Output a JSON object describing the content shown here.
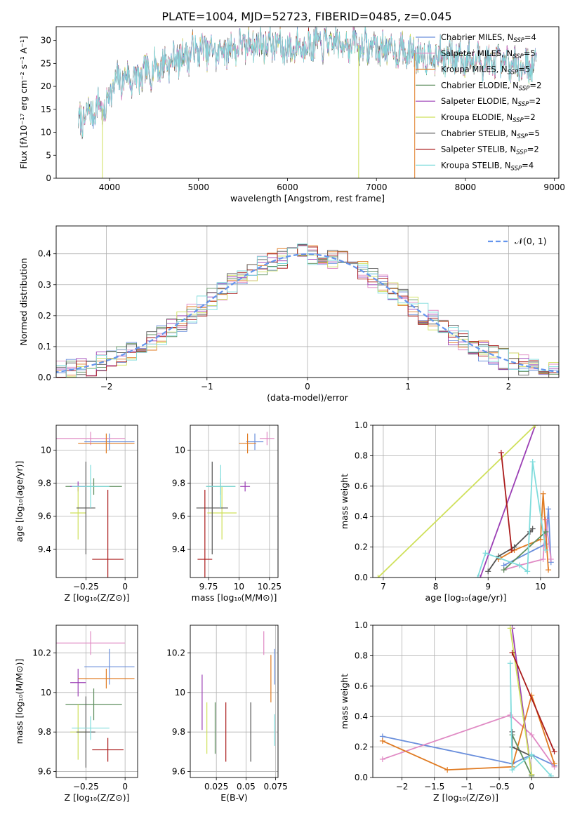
{
  "figure": {
    "title": "PLATE=1004, MJD=52723, FIBERID=0485, z=0.045"
  },
  "colors": {
    "Chabrier MILES": "#6a8fdc",
    "Salpeter MILES": "#e08ac4",
    "Kroupa MILES": "#e07b22",
    "Chabrier ELODIE": "#5e8e5e",
    "Salpeter ELODIE": "#9b3fb5",
    "Kroupa ELODIE": "#cfe05a",
    "Chabrier STELIB": "#555555",
    "Salpeter STELIB": "#aa1a1a",
    "Kroupa STELIB": "#7fdcdc"
  },
  "chart_data": [
    {
      "id": "spectrum",
      "type": "line",
      "xlabel": "wavelength [Angstrom, rest frame]",
      "ylabel": "Flux [fλ10⁻¹⁷ erg cm⁻² s⁻¹ A⁻¹]",
      "xlim": [
        3400,
        9050
      ],
      "ylim": [
        0,
        33
      ],
      "xticks": [
        4000,
        5000,
        6000,
        7000,
        8000,
        9000
      ],
      "yticks": [
        0,
        5,
        10,
        15,
        20,
        25,
        30
      ],
      "legend_position": "right",
      "legend": [
        {
          "model": "Chabrier MILES",
          "nssp": "4"
        },
        {
          "model": "Salpeter MILES",
          "nssp": "5"
        },
        {
          "model": "Kroupa MILES",
          "nssp": "5"
        },
        {
          "model": "Chabrier ELODIE",
          "nssp": "2"
        },
        {
          "model": "Salpeter ELODIE",
          "nssp": "2"
        },
        {
          "model": "Kroupa ELODIE",
          "nssp": "2"
        },
        {
          "model": "Chabrier STELIB",
          "nssp": "5"
        },
        {
          "model": "Salpeter STELIB",
          "nssp": "2"
        },
        {
          "model": "Kroupa STELIB",
          "nssp": "4"
        }
      ],
      "continuum": {
        "x": [
          3650,
          3700,
          3800,
          3900,
          3950,
          4000,
          4100,
          4200,
          4300,
          4500,
          4700,
          5000,
          5200,
          5500,
          5800,
          6000,
          6200,
          6500,
          6800,
          7000,
          7200,
          7500,
          7800,
          8000,
          8200,
          8400,
          8600,
          8800
        ],
        "y": [
          12,
          13,
          14.5,
          16,
          14,
          19,
          21,
          22,
          21.5,
          24,
          25.5,
          28,
          27.5,
          29,
          29.5,
          28,
          29,
          29.5,
          29,
          28.5,
          28,
          27,
          26.5,
          26,
          25.5,
          25,
          24.5,
          24.5
        ]
      },
      "lines": [
        {
          "model": "Kroupa ELODIE",
          "x": 3920,
          "y": 0
        },
        {
          "model": "Kroupa ELODIE",
          "x": 6800,
          "y": 0
        },
        {
          "model": "Kroupa MILES",
          "x": 7430,
          "y": 0
        }
      ]
    },
    {
      "id": "residuals",
      "type": "step",
      "xlabel": "(data-model)/error",
      "ylabel": "Normed distribution",
      "xlim": [
        -2.5,
        2.5
      ],
      "ylim": [
        0,
        0.49
      ],
      "xticks": [
        -2,
        -1,
        0,
        1,
        2
      ],
      "yticks": [
        0.0,
        0.1,
        0.2,
        0.3,
        0.4
      ],
      "grid": true,
      "legend_position": "top-right",
      "legend_label": "𝒩(0, 1)",
      "bin_width": 0.1
    },
    {
      "id": "age_Z",
      "type": "errorbar",
      "xlabel": "Z [log₁₀(Z/Z⊙)]",
      "ylabel": "age  [log₁₀(age/yr)]",
      "xlim": [
        -0.44,
        0.08
      ],
      "ylim": [
        9.23,
        10.15
      ],
      "xticks": [
        -0.25,
        0.0
      ],
      "yticks": [
        9.4,
        9.6,
        9.8,
        10.0
      ],
      "grid": true,
      "points": [
        {
          "model": "Chabrier MILES",
          "x": -0.1,
          "y": 10.05,
          "xerr": 0.16,
          "yerr": 0.05
        },
        {
          "model": "Salpeter MILES",
          "x": -0.22,
          "y": 10.07,
          "xerr": 0.22,
          "yerr": 0.04
        },
        {
          "model": "Kroupa MILES",
          "x": -0.12,
          "y": 10.04,
          "xerr": 0.18,
          "yerr": 0.06
        },
        {
          "model": "Chabrier ELODIE",
          "x": -0.2,
          "y": 9.78,
          "xerr": 0.18,
          "yerr": 0.05
        },
        {
          "model": "Salpeter ELODIE",
          "x": -0.3,
          "y": 9.78,
          "xerr": 0.05,
          "yerr": 0.03
        },
        {
          "model": "Kroupa ELODIE",
          "x": -0.3,
          "y": 9.62,
          "xerr": 0.05,
          "yerr": 0.16
        },
        {
          "model": "Chabrier STELIB",
          "x": -0.25,
          "y": 9.65,
          "xerr": 0.06,
          "yerr": 0.28
        },
        {
          "model": "Salpeter STELIB",
          "x": -0.11,
          "y": 9.34,
          "xerr": 0.1,
          "yerr": 0.42
        },
        {
          "model": "Kroupa STELIB",
          "x": -0.22,
          "y": 9.78,
          "xerr": 0.12,
          "yerr": 0.13
        }
      ]
    },
    {
      "id": "age_mass",
      "type": "errorbar",
      "xlabel": "mass [log₁₀(M/M⊙)]",
      "ylabel": "",
      "xlim": [
        9.6,
        10.32
      ],
      "ylim": [
        9.23,
        10.15
      ],
      "xticks": [
        9.75,
        10.0,
        10.25
      ],
      "yticks": [
        9.4,
        9.6,
        9.8,
        10.0
      ],
      "grid": true,
      "points": [
        {
          "model": "Chabrier MILES",
          "x": 10.13,
          "y": 10.05,
          "xerr": 0.07,
          "yerr": 0.05
        },
        {
          "model": "Salpeter MILES",
          "x": 10.23,
          "y": 10.07,
          "xerr": 0.06,
          "yerr": 0.04
        },
        {
          "model": "Kroupa MILES",
          "x": 10.07,
          "y": 10.04,
          "xerr": 0.07,
          "yerr": 0.06
        },
        {
          "model": "Chabrier ELODIE",
          "x": 9.85,
          "y": 9.78,
          "xerr": 0.12,
          "yerr": 0.05
        },
        {
          "model": "Salpeter ELODIE",
          "x": 10.05,
          "y": 9.78,
          "xerr": 0.04,
          "yerr": 0.03
        },
        {
          "model": "Kroupa ELODIE",
          "x": 9.86,
          "y": 9.62,
          "xerr": 0.12,
          "yerr": 0.16
        },
        {
          "model": "Chabrier STELIB",
          "x": 9.78,
          "y": 9.65,
          "xerr": 0.13,
          "yerr": 0.28
        },
        {
          "model": "Salpeter STELIB",
          "x": 9.72,
          "y": 9.34,
          "xerr": 0.06,
          "yerr": 0.42
        },
        {
          "model": "Kroupa STELIB",
          "x": 9.85,
          "y": 9.78,
          "xerr": 0.12,
          "yerr": 0.13
        }
      ]
    },
    {
      "id": "weight_age",
      "type": "line",
      "xlabel": "age  [log₁₀(age/yr)]",
      "ylabel": "mass weight",
      "xlim": [
        6.8,
        10.35
      ],
      "ylim": [
        0,
        1.0
      ],
      "xticks": [
        7,
        8,
        9,
        10
      ],
      "yticks": [
        0.0,
        0.2,
        0.4,
        0.6,
        0.8,
        1.0
      ],
      "grid": true,
      "series": [
        {
          "model": "Chabrier MILES",
          "x": [
            9.3,
            10.1,
            10.15,
            10.2
          ],
          "y": [
            0.08,
            0.22,
            0.45,
            0.1
          ]
        },
        {
          "model": "Salpeter MILES",
          "x": [
            9.3,
            9.6,
            10.05,
            10.1,
            10.2
          ],
          "y": [
            0.05,
            0.08,
            0.12,
            0.38,
            0.12
          ]
        },
        {
          "model": "Kroupa MILES",
          "x": [
            9.2,
            9.5,
            10.0,
            10.05,
            10.15
          ],
          "y": [
            0.12,
            0.18,
            0.25,
            0.55,
            0.05
          ]
        },
        {
          "model": "Chabrier ELODIE",
          "x": [
            9.3,
            10.1
          ],
          "y": [
            0.05,
            0.3
          ]
        },
        {
          "model": "Salpeter ELODIE",
          "x": [
            8.85,
            9.9
          ],
          "y": [
            0.0,
            1.0
          ]
        },
        {
          "model": "Kroupa ELODIE",
          "x": [
            6.9,
            9.9
          ],
          "y": [
            0.0,
            1.0
          ]
        },
        {
          "model": "Chabrier STELIB",
          "x": [
            9.0,
            9.2,
            9.5,
            9.8,
            9.85
          ],
          "y": [
            0.04,
            0.14,
            0.2,
            0.3,
            0.32
          ]
        },
        {
          "model": "Salpeter STELIB",
          "x": [
            9.25,
            9.45
          ],
          "y": [
            0.82,
            0.18
          ]
        },
        {
          "model": "Kroupa STELIB",
          "x": [
            8.8,
            8.95,
            9.6,
            9.75,
            9.85,
            10.1
          ],
          "y": [
            0.0,
            0.16,
            0.08,
            0.04,
            0.76,
            0.18
          ]
        }
      ]
    },
    {
      "id": "mass_Z",
      "type": "errorbar",
      "xlabel": "Z [log₁₀(Z/Z⊙)]",
      "ylabel": "mass [log₁₀(M/M⊙)]",
      "xlim": [
        -0.44,
        0.08
      ],
      "ylim": [
        9.57,
        10.34
      ],
      "xticks": [
        -0.25,
        0.0
      ],
      "yticks": [
        9.6,
        9.8,
        10.0,
        10.2
      ],
      "grid": true,
      "points": [
        {
          "model": "Chabrier MILES",
          "x": -0.1,
          "y": 10.13,
          "xerr": 0.16,
          "yerr": 0.09
        },
        {
          "model": "Salpeter MILES",
          "x": -0.22,
          "y": 10.25,
          "xerr": 0.22,
          "yerr": 0.06
        },
        {
          "model": "Kroupa MILES",
          "x": -0.12,
          "y": 10.07,
          "xerr": 0.18,
          "yerr": 0.05
        },
        {
          "model": "Chabrier ELODIE",
          "x": -0.2,
          "y": 9.94,
          "xerr": 0.18,
          "yerr": 0.08
        },
        {
          "model": "Salpeter ELODIE",
          "x": -0.3,
          "y": 10.05,
          "xerr": 0.05,
          "yerr": 0.07
        },
        {
          "model": "Kroupa ELODIE",
          "x": -0.3,
          "y": 9.8,
          "xerr": 0.05,
          "yerr": 0.14
        },
        {
          "model": "Chabrier STELIB",
          "x": -0.25,
          "y": 9.8,
          "xerr": 0.06,
          "yerr": 0.18
        },
        {
          "model": "Salpeter STELIB",
          "x": -0.11,
          "y": 9.71,
          "xerr": 0.1,
          "yerr": 0.06
        },
        {
          "model": "Kroupa STELIB",
          "x": -0.22,
          "y": 9.82,
          "xerr": 0.12,
          "yerr": 0.06
        }
      ]
    },
    {
      "id": "mass_ebv",
      "type": "errorbar",
      "xlabel": "E(B-V)",
      "ylabel": "",
      "xlim": [
        0.003,
        0.077
      ],
      "ylim": [
        9.57,
        10.34
      ],
      "xticks": [
        0.025,
        0.05,
        0.075
      ],
      "yticks": [
        9.6,
        9.8,
        10.0,
        10.2
      ],
      "grid": true,
      "points": [
        {
          "model": "Chabrier MILES",
          "x": 0.074,
          "y": 10.13,
          "yerr": 0.09
        },
        {
          "model": "Salpeter MILES",
          "x": 0.065,
          "y": 10.25,
          "yerr": 0.06
        },
        {
          "model": "Kroupa MILES",
          "x": 0.071,
          "y": 10.07,
          "yerr": 0.12
        },
        {
          "model": "Chabrier ELODIE",
          "x": 0.024,
          "y": 9.82,
          "yerr": 0.13
        },
        {
          "model": "Salpeter ELODIE",
          "x": 0.013,
          "y": 9.95,
          "yerr": 0.14
        },
        {
          "model": "Kroupa ELODIE",
          "x": 0.017,
          "y": 9.82,
          "yerr": 0.13
        },
        {
          "model": "Chabrier STELIB",
          "x": 0.054,
          "y": 9.8,
          "yerr": 0.15
        },
        {
          "model": "Salpeter STELIB",
          "x": 0.033,
          "y": 9.8,
          "yerr": 0.15
        },
        {
          "model": "Kroupa STELIB",
          "x": 0.074,
          "y": 9.81,
          "yerr": 0.08
        }
      ]
    },
    {
      "id": "weight_Z",
      "type": "line",
      "xlabel": "Z [log₁₀(Z/Z⊙)]",
      "ylabel": "mass weight",
      "xlim": [
        -2.45,
        0.42
      ],
      "ylim": [
        0,
        1.0
      ],
      "xticks": [
        -2.0,
        -1.5,
        -1.0,
        -0.5,
        0.0
      ],
      "yticks": [
        0.0,
        0.2,
        0.4,
        0.6,
        0.8,
        1.0
      ],
      "grid": true,
      "series": [
        {
          "model": "Chabrier MILES",
          "x": [
            -2.3,
            -0.3,
            0.0,
            0.35
          ],
          "y": [
            0.27,
            0.09,
            0.15,
            0.08
          ]
        },
        {
          "model": "Salpeter MILES",
          "x": [
            -2.3,
            -0.33,
            0.0,
            0.35
          ],
          "y": [
            0.12,
            0.41,
            0.28,
            0.07
          ]
        },
        {
          "model": "Kroupa MILES",
          "x": [
            -2.3,
            -1.3,
            -0.3,
            0.0,
            0.35
          ],
          "y": [
            0.24,
            0.05,
            0.07,
            0.54,
            0.09
          ]
        },
        {
          "model": "Chabrier ELODIE",
          "x": [
            -0.3,
            0.0
          ],
          "y": [
            0.28,
            0.01
          ]
        },
        {
          "model": "Salpeter ELODIE",
          "x": [
            -0.3,
            0.0
          ],
          "y": [
            0.98,
            0.02
          ]
        },
        {
          "model": "Kroupa ELODIE",
          "x": [
            -0.33,
            0.0
          ],
          "y": [
            0.98,
            0.02
          ]
        },
        {
          "model": "Chabrier STELIB",
          "x": [
            -0.3,
            -0.3,
            0.0
          ],
          "y": [
            0.3,
            0.2,
            0.14
          ]
        },
        {
          "model": "Salpeter STELIB",
          "x": [
            -0.3,
            0.35
          ],
          "y": [
            0.82,
            0.17
          ]
        },
        {
          "model": "Kroupa STELIB",
          "x": [
            -0.33,
            -0.3,
            0.0,
            0.3
          ],
          "y": [
            0.75,
            0.05,
            0.15,
            0.01
          ]
        }
      ]
    }
  ]
}
